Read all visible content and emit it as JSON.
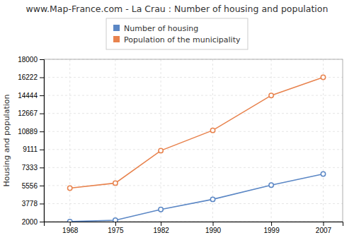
{
  "chart_data": {
    "type": "line",
    "title": "www.Map-France.com - La Crau : Number of housing and population",
    "ylabel": "Housing and population",
    "x": [
      1968,
      1975,
      1982,
      1990,
      1999,
      2007
    ],
    "series": [
      {
        "name": "Number of housing",
        "color": "#5b87c5",
        "values": [
          2009,
          2134,
          3200,
          4200,
          5600,
          6700
        ]
      },
      {
        "name": "Population of the municipality",
        "color": "#e8834e",
        "values": [
          5300,
          5800,
          9000,
          11000,
          14440,
          16222
        ]
      }
    ],
    "xlim": [
      1964,
      2010
    ],
    "xticks": [
      1968,
      1975,
      1982,
      1990,
      1999,
      2007
    ],
    "ylim": [
      2000,
      18000
    ],
    "yticks": [
      2000,
      3778,
      5556,
      7333,
      9111,
      10889,
      12667,
      14444,
      16222,
      18000
    ],
    "grid": true,
    "legend": "top",
    "marker": "circle"
  }
}
